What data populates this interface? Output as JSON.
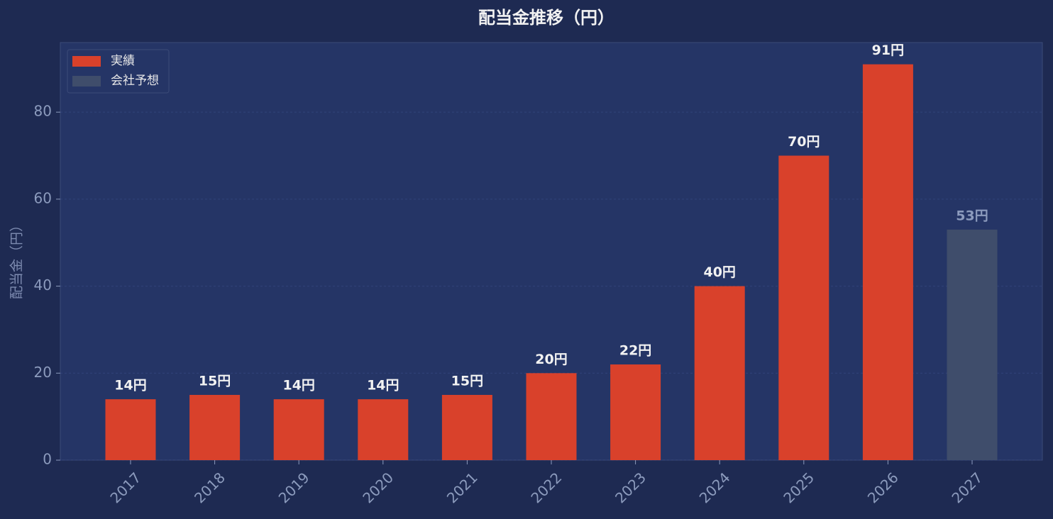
{
  "chart_data": {
    "type": "bar",
    "title": "配当金推移（円）",
    "y_label": "配当金（円）",
    "categories": [
      "2017",
      "2018",
      "2019",
      "2020",
      "2021",
      "2022",
      "2023",
      "2024",
      "2025",
      "2026",
      "2027"
    ],
    "series": [
      {
        "name": "実績",
        "color": "#d9412b",
        "label_color": "#f2f2f2",
        "values": [
          14,
          15,
          14,
          14,
          15,
          20,
          22,
          40,
          70,
          91,
          null
        ],
        "value_labels": [
          "14円",
          "15円",
          "14円",
          "14円",
          "15円",
          "20円",
          "22円",
          "40円",
          "70円",
          "91円",
          null
        ]
      },
      {
        "name": "会社予想",
        "color": "#3f4d6b",
        "label_color": "#8c9bbd",
        "values": [
          null,
          null,
          null,
          null,
          null,
          null,
          null,
          null,
          null,
          null,
          53
        ],
        "value_labels": [
          null,
          null,
          null,
          null,
          null,
          null,
          null,
          null,
          null,
          null,
          "53円"
        ]
      }
    ],
    "ylim": [
      0,
      96
    ],
    "yticks": [
      0,
      20,
      40,
      60,
      80
    ],
    "grid": true,
    "legend": "upper left"
  }
}
